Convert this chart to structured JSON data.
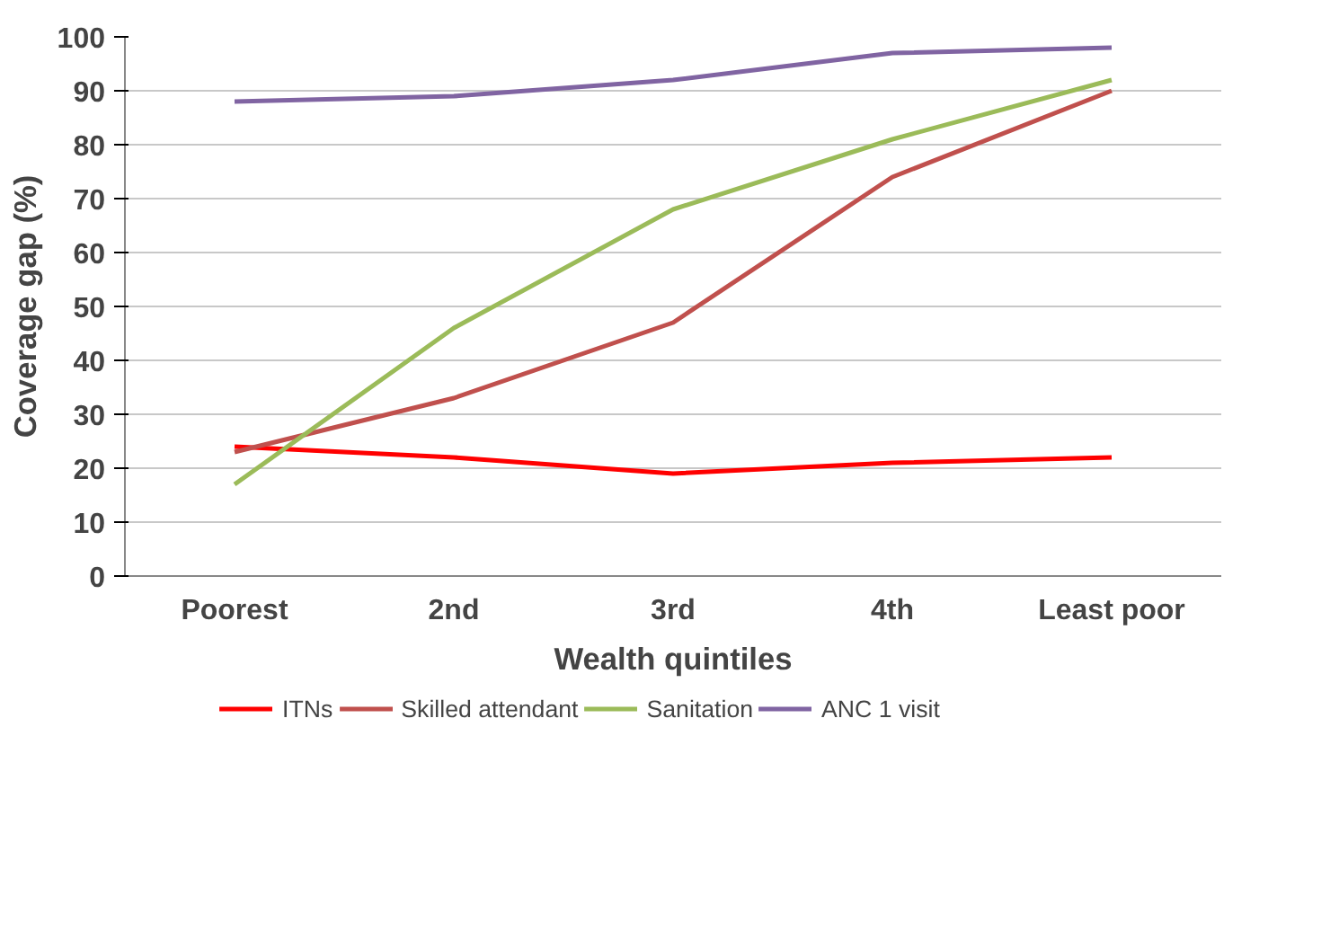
{
  "chart_data": {
    "type": "line",
    "xlabel": "Wealth quintiles",
    "ylabel": "Coverage gap (%)",
    "categories": [
      "Poorest",
      "2nd",
      "3rd",
      "4th",
      "Least poor"
    ],
    "series": [
      {
        "name": "ITNs",
        "color": "#ff0000",
        "values": [
          24,
          22,
          19,
          21,
          22
        ]
      },
      {
        "name": "Skilled attendant",
        "color": "#c0504d",
        "values": [
          23,
          33,
          47,
          74,
          90
        ]
      },
      {
        "name": "Sanitation",
        "color": "#9bbb59",
        "values": [
          17,
          46,
          68,
          81,
          92
        ]
      },
      {
        "name": "ANC 1 visit",
        "color": "#8064a2",
        "values": [
          88,
          89,
          92,
          97,
          98
        ]
      }
    ],
    "ylim": [
      0,
      100
    ],
    "yticks": [
      0,
      10,
      20,
      30,
      40,
      50,
      60,
      70,
      80,
      90,
      100
    ],
    "grid": "y",
    "legend": "bottom",
    "marker": "none",
    "line_style": "solid"
  }
}
